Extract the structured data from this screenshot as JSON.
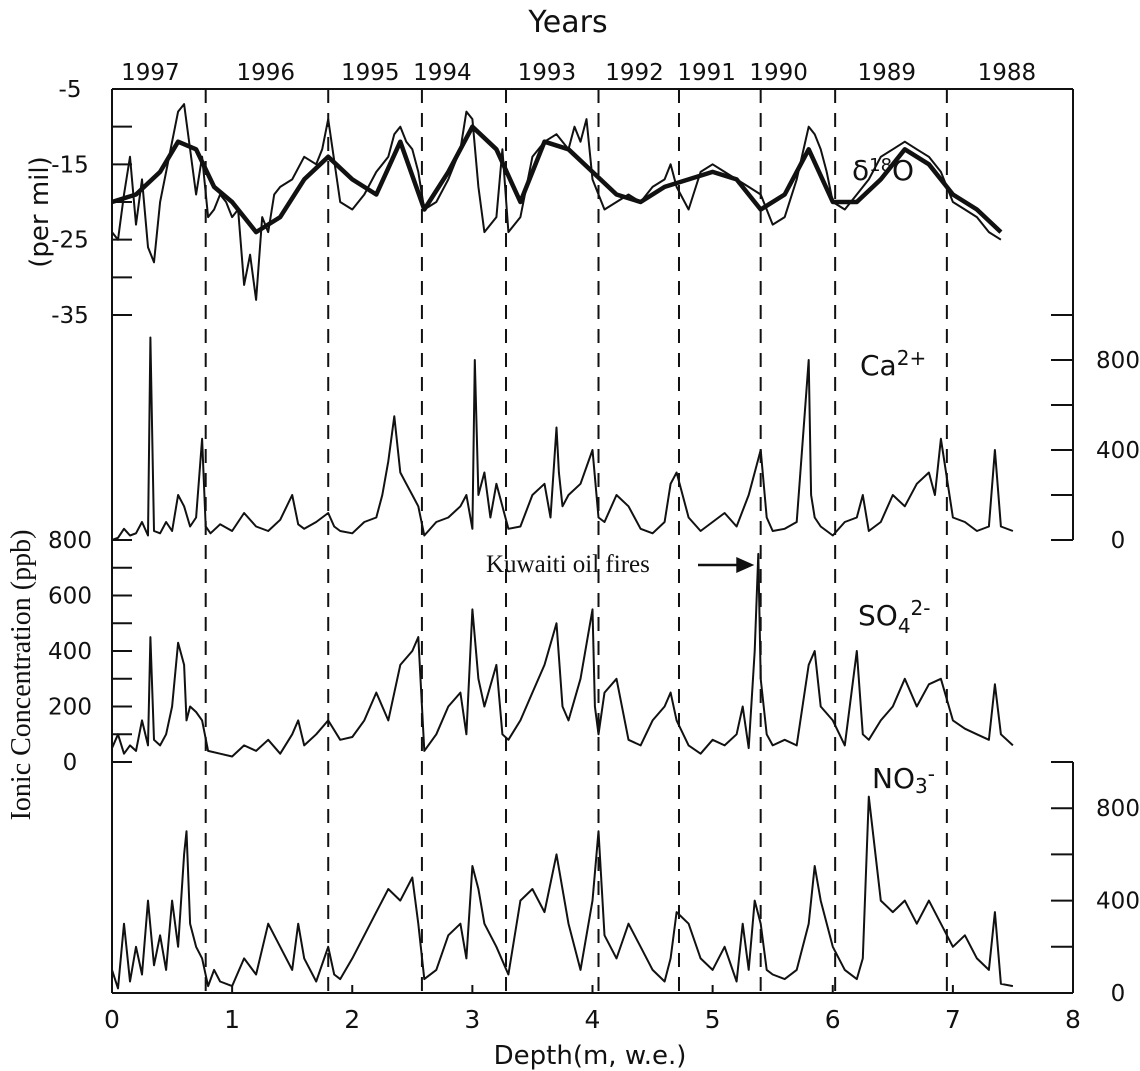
{
  "chart_data": {
    "type": "line",
    "title": "Years",
    "xlabel": "Depth(m, w.e.)",
    "xlim": [
      0,
      8
    ],
    "x_ticks": [
      "0",
      "1",
      "2",
      "3",
      "4",
      "5",
      "6",
      "7",
      "8"
    ],
    "year_labels": [
      "1997",
      "1996",
      "1995",
      "1994",
      "1993",
      "1992",
      "1991",
      "1990",
      "1989",
      "1988"
    ],
    "year_label_depths": [
      0.32,
      1.28,
      2.15,
      2.75,
      3.62,
      4.35,
      4.95,
      5.55,
      6.45,
      7.45
    ],
    "year_boundaries_depth": [
      0.78,
      1.8,
      2.58,
      3.28,
      4.05,
      4.72,
      5.4,
      6.02,
      6.95
    ],
    "annotation": "Kuwaiti oil fires",
    "annotation_depth": 5.38,
    "shared_ylabel": "Ionic Concentration (ppb)",
    "panels": [
      {
        "name": "δ18O",
        "ylabel": "(per  mil)",
        "ylim": [
          -35,
          -5
        ],
        "ticks": [
          "-5",
          "-15",
          "-25",
          "-35"
        ],
        "series": [
          {
            "name": "raw",
            "x": [
              0,
              0.05,
              0.1,
              0.15,
              0.2,
              0.25,
              0.3,
              0.35,
              0.4,
              0.45,
              0.5,
              0.55,
              0.6,
              0.65,
              0.7,
              0.75,
              0.8,
              0.85,
              0.9,
              0.95,
              1.0,
              1.05,
              1.1,
              1.15,
              1.2,
              1.25,
              1.3,
              1.35,
              1.4,
              1.5,
              1.6,
              1.7,
              1.75,
              1.8,
              1.9,
              2.0,
              2.1,
              2.2,
              2.3,
              2.35,
              2.4,
              2.45,
              2.5,
              2.55,
              2.6,
              2.7,
              2.8,
              2.9,
              2.95,
              3.0,
              3.05,
              3.1,
              3.2,
              3.25,
              3.3,
              3.4,
              3.5,
              3.6,
              3.7,
              3.8,
              3.85,
              3.9,
              3.95,
              4.0,
              4.05,
              4.1,
              4.2,
              4.3,
              4.4,
              4.5,
              4.6,
              4.65,
              4.7,
              4.8,
              4.9,
              5.0,
              5.1,
              5.2,
              5.3,
              5.4,
              5.5,
              5.6,
              5.7,
              5.8,
              5.85,
              5.9,
              5.95,
              6.0,
              6.1,
              6.2,
              6.3,
              6.4,
              6.5,
              6.6,
              6.7,
              6.8,
              6.9,
              7.0,
              7.1,
              7.2,
              7.3,
              7.4
            ],
            "values": [
              -24,
              -25,
              -19,
              -14,
              -23,
              -17,
              -26,
              -28,
              -20,
              -16,
              -12,
              -8,
              -7,
              -13,
              -19,
              -14,
              -22,
              -21,
              -19,
              -20,
              -22,
              -21,
              -31,
              -27,
              -33,
              -22,
              -24,
              -19,
              -18,
              -17,
              -14,
              -15,
              -13,
              -9,
              -20,
              -21,
              -19,
              -16,
              -14,
              -11,
              -10,
              -12,
              -13,
              -16,
              -21,
              -20,
              -17,
              -13,
              -8,
              -9,
              -18,
              -24,
              -22,
              -13,
              -24,
              -22,
              -14,
              -12,
              -11,
              -13,
              -10,
              -12,
              -9,
              -17,
              -19,
              -21,
              -20,
              -19,
              -20,
              -18,
              -17,
              -15,
              -18,
              -21,
              -16,
              -15,
              -16,
              -17,
              -18,
              -19,
              -23,
              -22,
              -17,
              -10,
              -11,
              -13,
              -16,
              -20,
              -21,
              -19,
              -17,
              -14,
              -13,
              -12,
              -13,
              -14,
              -16,
              -20,
              -21,
              -22,
              -24,
              -25
            ]
          },
          {
            "name": "smoothed",
            "x": [
              0,
              0.2,
              0.4,
              0.55,
              0.7,
              0.85,
              1.0,
              1.2,
              1.4,
              1.6,
              1.8,
              2.0,
              2.2,
              2.4,
              2.6,
              2.8,
              3.0,
              3.2,
              3.4,
              3.6,
              3.8,
              4.0,
              4.2,
              4.4,
              4.6,
              4.8,
              5.0,
              5.2,
              5.4,
              5.6,
              5.8,
              6.0,
              6.2,
              6.4,
              6.6,
              6.8,
              7.0,
              7.2,
              7.4
            ],
            "values": [
              -20,
              -19,
              -16,
              -12,
              -13,
              -18,
              -20,
              -24,
              -22,
              -17,
              -14,
              -17,
              -19,
              -12,
              -21,
              -16,
              -10,
              -13,
              -20,
              -12,
              -13,
              -16,
              -19,
              -20,
              -18,
              -17,
              -16,
              -17,
              -21,
              -19,
              -13,
              -20,
              -20,
              -17,
              -13,
              -15,
              -19,
              -21,
              -24
            ]
          }
        ]
      },
      {
        "name": "Ca2+",
        "ylim": [
          0,
          1000
        ],
        "ticks": [
          "0",
          "400",
          "800"
        ],
        "series": [
          {
            "name": "Ca2+",
            "x": [
              0,
              0.05,
              0.1,
              0.15,
              0.2,
              0.25,
              0.3,
              0.32,
              0.35,
              0.4,
              0.45,
              0.5,
              0.55,
              0.6,
              0.65,
              0.7,
              0.75,
              0.78,
              0.82,
              0.9,
              1.0,
              1.1,
              1.2,
              1.3,
              1.4,
              1.5,
              1.55,
              1.6,
              1.7,
              1.8,
              1.85,
              1.9,
              2.0,
              2.1,
              2.2,
              2.25,
              2.3,
              2.35,
              2.4,
              2.45,
              2.5,
              2.55,
              2.6,
              2.7,
              2.8,
              2.9,
              2.95,
              3.0,
              3.02,
              3.05,
              3.1,
              3.15,
              3.2,
              3.25,
              3.3,
              3.4,
              3.5,
              3.6,
              3.65,
              3.7,
              3.72,
              3.75,
              3.8,
              3.9,
              4.0,
              4.05,
              4.1,
              4.2,
              4.3,
              4.4,
              4.5,
              4.6,
              4.65,
              4.7,
              4.8,
              4.9,
              5.0,
              5.1,
              5.2,
              5.3,
              5.35,
              5.4,
              5.45,
              5.5,
              5.6,
              5.7,
              5.8,
              5.82,
              5.85,
              5.9,
              6.0,
              6.1,
              6.2,
              6.25,
              6.3,
              6.4,
              6.5,
              6.6,
              6.7,
              6.8,
              6.85,
              6.9,
              7.0,
              7.1,
              7.2,
              7.3,
              7.35,
              7.4,
              7.5
            ],
            "values": [
              0,
              10,
              50,
              20,
              30,
              80,
              20,
              900,
              40,
              30,
              80,
              40,
              200,
              150,
              60,
              100,
              450,
              60,
              30,
              70,
              40,
              120,
              60,
              40,
              90,
              200,
              70,
              50,
              80,
              120,
              60,
              40,
              30,
              80,
              100,
              200,
              350,
              550,
              300,
              250,
              200,
              150,
              20,
              80,
              100,
              150,
              200,
              50,
              800,
              200,
              300,
              100,
              250,
              150,
              50,
              60,
              200,
              250,
              100,
              500,
              300,
              150,
              200,
              250,
              400,
              100,
              80,
              200,
              150,
              50,
              30,
              80,
              250,
              300,
              100,
              40,
              80,
              120,
              60,
              200,
              300,
              400,
              100,
              40,
              50,
              80,
              800,
              200,
              100,
              60,
              20,
              80,
              100,
              200,
              40,
              80,
              200,
              150,
              250,
              300,
              200,
              450,
              100,
              80,
              40,
              60,
              400,
              60,
              40
            ]
          }
        ]
      },
      {
        "name": "SO42-",
        "ylim": [
          0,
          800
        ],
        "ticks": [
          "0",
          "200",
          "400",
          "600",
          "800"
        ],
        "series": [
          {
            "name": "SO42-",
            "x": [
              0,
              0.05,
              0.1,
              0.15,
              0.2,
              0.25,
              0.3,
              0.32,
              0.35,
              0.4,
              0.45,
              0.5,
              0.55,
              0.6,
              0.62,
              0.65,
              0.7,
              0.75,
              0.8,
              0.9,
              1.0,
              1.1,
              1.2,
              1.3,
              1.4,
              1.5,
              1.55,
              1.6,
              1.7,
              1.8,
              1.9,
              2.0,
              2.1,
              2.2,
              2.3,
              2.4,
              2.5,
              2.55,
              2.6,
              2.7,
              2.8,
              2.9,
              2.95,
              3.0,
              3.05,
              3.1,
              3.2,
              3.25,
              3.3,
              3.4,
              3.5,
              3.6,
              3.7,
              3.75,
              3.8,
              3.9,
              4.0,
              4.02,
              4.05,
              4.1,
              4.2,
              4.3,
              4.4,
              4.5,
              4.6,
              4.65,
              4.7,
              4.8,
              4.9,
              5.0,
              5.1,
              5.2,
              5.25,
              5.3,
              5.35,
              5.38,
              5.4,
              5.45,
              5.5,
              5.6,
              5.7,
              5.8,
              5.85,
              5.9,
              6.0,
              6.1,
              6.2,
              6.25,
              6.3,
              6.4,
              6.5,
              6.6,
              6.7,
              6.8,
              6.9,
              7.0,
              7.1,
              7.2,
              7.3,
              7.35,
              7.4,
              7.5
            ],
            "values": [
              50,
              100,
              30,
              60,
              40,
              150,
              60,
              450,
              80,
              60,
              100,
              200,
              430,
              350,
              150,
              200,
              180,
              150,
              40,
              30,
              20,
              60,
              40,
              80,
              30,
              100,
              150,
              60,
              100,
              150,
              80,
              90,
              150,
              250,
              150,
              350,
              400,
              450,
              40,
              100,
              200,
              250,
              100,
              550,
              300,
              200,
              350,
              100,
              80,
              150,
              250,
              350,
              500,
              200,
              150,
              300,
              550,
              200,
              100,
              250,
              300,
              80,
              60,
              150,
              200,
              250,
              150,
              60,
              30,
              80,
              60,
              100,
              200,
              50,
              400,
              750,
              300,
              100,
              60,
              80,
              60,
              350,
              400,
              200,
              150,
              60,
              400,
              100,
              80,
              150,
              200,
              300,
              200,
              280,
              300,
              150,
              120,
              100,
              80,
              280,
              100,
              60
            ]
          }
        ]
      },
      {
        "name": "NO3-",
        "ylim": [
          0,
          1000
        ],
        "ticks": [
          "0",
          "400",
          "800"
        ],
        "series": [
          {
            "name": "NO3-",
            "x": [
              0,
              0.05,
              0.1,
              0.15,
              0.2,
              0.25,
              0.3,
              0.35,
              0.4,
              0.45,
              0.5,
              0.55,
              0.6,
              0.62,
              0.65,
              0.7,
              0.75,
              0.8,
              0.85,
              0.9,
              1.0,
              1.1,
              1.2,
              1.3,
              1.4,
              1.5,
              1.55,
              1.6,
              1.7,
              1.8,
              1.85,
              1.9,
              2.0,
              2.1,
              2.2,
              2.3,
              2.4,
              2.5,
              2.55,
              2.6,
              2.7,
              2.8,
              2.9,
              2.95,
              3.0,
              3.05,
              3.1,
              3.2,
              3.3,
              3.4,
              3.5,
              3.6,
              3.7,
              3.8,
              3.9,
              4.0,
              4.05,
              4.1,
              4.2,
              4.3,
              4.4,
              4.5,
              4.6,
              4.65,
              4.7,
              4.8,
              4.9,
              5.0,
              5.1,
              5.2,
              5.25,
              5.3,
              5.35,
              5.4,
              5.45,
              5.5,
              5.6,
              5.7,
              5.8,
              5.85,
              5.9,
              6.0,
              6.1,
              6.2,
              6.25,
              6.3,
              6.4,
              6.5,
              6.6,
              6.7,
              6.8,
              6.9,
              7.0,
              7.1,
              7.2,
              7.3,
              7.35,
              7.4,
              7.5
            ],
            "values": [
              100,
              20,
              300,
              50,
              200,
              80,
              400,
              120,
              250,
              100,
              400,
              200,
              600,
              700,
              300,
              200,
              150,
              30,
              100,
              50,
              30,
              150,
              80,
              300,
              200,
              100,
              300,
              150,
              50,
              200,
              80,
              60,
              150,
              250,
              350,
              450,
              400,
              500,
              300,
              60,
              100,
              250,
              300,
              150,
              550,
              450,
              300,
              200,
              80,
              400,
              450,
              350,
              600,
              300,
              100,
              400,
              700,
              250,
              150,
              300,
              200,
              100,
              50,
              150,
              350,
              300,
              150,
              100,
              200,
              50,
              300,
              100,
              400,
              300,
              100,
              80,
              60,
              100,
              300,
              550,
              400,
              200,
              100,
              60,
              150,
              850,
              400,
              350,
              400,
              300,
              400,
              300,
              200,
              250,
              150,
              100,
              350,
              40,
              30
            ]
          }
        ]
      }
    ]
  }
}
